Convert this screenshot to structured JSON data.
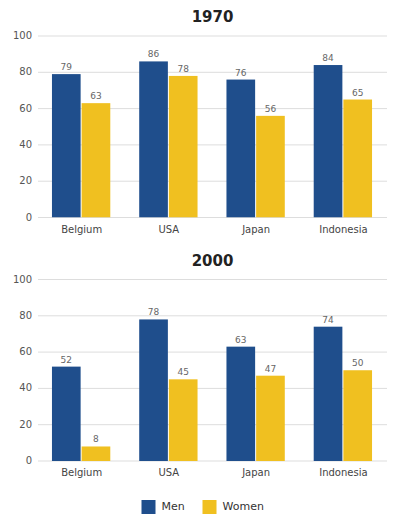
{
  "chart_data": [
    {
      "type": "bar",
      "title": "1970",
      "categories": [
        "Belgium",
        "USA",
        "Japan",
        "Indonesia"
      ],
      "series": [
        {
          "name": "Men",
          "color": "#1F4E8C",
          "values": [
            79,
            86,
            76,
            84
          ]
        },
        {
          "name": "Women",
          "color": "#F0C020",
          "values": [
            63,
            78,
            56,
            65
          ]
        }
      ],
      "ylim": [
        0,
        100
      ],
      "yticks": [
        0,
        20,
        40,
        60,
        80,
        100
      ],
      "grid": true,
      "data_labels": true
    },
    {
      "type": "bar",
      "title": "2000",
      "categories": [
        "Belgium",
        "USA",
        "Japan",
        "Indonesia"
      ],
      "series": [
        {
          "name": "Men",
          "color": "#1F4E8C",
          "values": [
            52,
            78,
            63,
            74
          ]
        },
        {
          "name": "Women",
          "color": "#F0C020",
          "values": [
            8,
            45,
            47,
            50
          ]
        }
      ],
      "ylim": [
        0,
        100
      ],
      "yticks": [
        0,
        20,
        40,
        60,
        80,
        100
      ],
      "grid": true,
      "data_labels": true,
      "legend": "bottom"
    }
  ]
}
